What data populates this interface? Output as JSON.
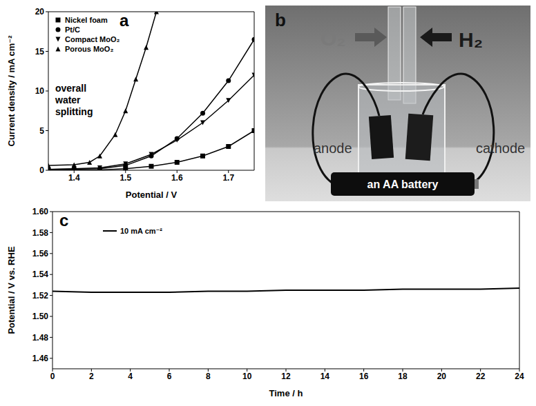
{
  "chart_data": [
    {
      "type": "line",
      "panel": "a",
      "annotations": [
        "overall water splitting"
      ],
      "xlabel": "Potential / V",
      "ylabel": "Current density / mA cm⁻²",
      "xlim": [
        1.35,
        1.75
      ],
      "xticks": [
        1.4,
        1.5,
        1.6,
        1.7
      ],
      "ylim": [
        0,
        20
      ],
      "yticks": [
        0,
        5,
        10,
        15,
        20
      ],
      "grid": false,
      "legend": "upper left",
      "series": [
        {
          "name": "Nickel foam",
          "color": "#000000",
          "marker": "square",
          "x": [
            1.35,
            1.4,
            1.45,
            1.5,
            1.55,
            1.6,
            1.65,
            1.7,
            1.75
          ],
          "values": [
            0.0,
            0.02,
            0.05,
            0.2,
            0.5,
            1.0,
            1.8,
            3.0,
            5.0
          ]
        },
        {
          "name": "Pt/C",
          "color": "#000000",
          "marker": "circle",
          "x": [
            1.35,
            1.4,
            1.45,
            1.5,
            1.55,
            1.6,
            1.65,
            1.7,
            1.75
          ],
          "values": [
            0.1,
            0.15,
            0.2,
            0.6,
            1.8,
            4.0,
            7.2,
            11.3,
            16.5
          ]
        },
        {
          "name": "Compact MoO₂",
          "color": "#000000",
          "marker": "triangle-down",
          "x": [
            1.35,
            1.4,
            1.45,
            1.5,
            1.55,
            1.6,
            1.65,
            1.7,
            1.75
          ],
          "values": [
            0.1,
            0.2,
            0.3,
            0.8,
            2.0,
            3.8,
            6.0,
            8.8,
            12.0
          ]
        },
        {
          "name": "Porous MoO₂",
          "color": "#000000",
          "marker": "triangle",
          "x": [
            1.35,
            1.4,
            1.43,
            1.45,
            1.48,
            1.5,
            1.52,
            1.54,
            1.56
          ],
          "values": [
            0.6,
            0.7,
            1.0,
            1.8,
            4.5,
            7.5,
            11.5,
            15.5,
            20.0
          ]
        }
      ]
    },
    {
      "type": "line",
      "panel": "c",
      "xlabel": "Time / h",
      "ylabel": "Potential / V vs. RHE",
      "xlim": [
        0,
        24
      ],
      "xticks": [
        0,
        2,
        4,
        6,
        8,
        10,
        12,
        14,
        16,
        18,
        20,
        22,
        24
      ],
      "ylim": [
        1.45,
        1.6
      ],
      "yticks": [
        1.46,
        1.48,
        {
          "value": 1.5,
          "label": "1.50"
        },
        1.52,
        1.54,
        1.56,
        1.58,
        {
          "value": 1.6,
          "label": "1.60"
        }
      ],
      "grid": false,
      "legend": "upper left",
      "series": [
        {
          "name": "10 mA cm⁻²",
          "color": "#000000",
          "marker": "none",
          "x": [
            0,
            2,
            4,
            6,
            8,
            10,
            12,
            14,
            16,
            18,
            20,
            22,
            24
          ],
          "values": [
            1.524,
            1.523,
            1.523,
            1.523,
            1.524,
            1.524,
            1.525,
            1.525,
            1.525,
            1.526,
            1.526,
            1.526,
            1.527
          ]
        }
      ]
    }
  ],
  "photo": {
    "panel": "b",
    "texts": {
      "gas_left": "O₂",
      "gas_right": "H₂",
      "left_electrode": "anode",
      "right_electrode": "cathode",
      "battery": "an AA battery"
    }
  }
}
